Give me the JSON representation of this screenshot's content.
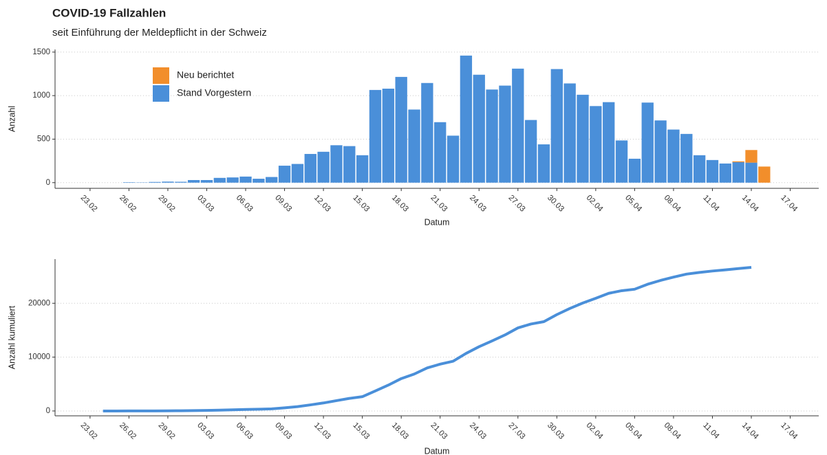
{
  "chart_data": [
    {
      "type": "bar",
      "title": "COVID-19 Fallzahlen",
      "subtitle": "seit Einführung der Meldepflicht in der Schweiz",
      "x_label": "Datum",
      "y_label": "Anzahl",
      "x": [
        "26.02",
        "27.02",
        "28.02",
        "29.02",
        "01.03",
        "02.03",
        "03.03",
        "04.03",
        "05.03",
        "06.03",
        "07.03",
        "08.03",
        "09.03",
        "10.03",
        "11.03",
        "12.03",
        "13.03",
        "14.03",
        "15.03",
        "16.03",
        "17.03",
        "18.03",
        "19.03",
        "20.03",
        "21.03",
        "22.03",
        "23.03",
        "24.03",
        "25.03",
        "26.03",
        "27.03",
        "28.03",
        "29.03",
        "30.03",
        "31.03",
        "01.04",
        "02.04",
        "03.04",
        "04.04",
        "05.04",
        "06.04",
        "07.04",
        "08.04",
        "09.04",
        "10.04",
        "11.04",
        "12.04",
        "13.04",
        "14.04",
        "15.04"
      ],
      "series": [
        {
          "name": "Neu berichtet",
          "color": "#f28e2b",
          "values": [
            0,
            0,
            0,
            0,
            0,
            0,
            0,
            0,
            0,
            0,
            0,
            0,
            0,
            0,
            0,
            0,
            0,
            0,
            0,
            0,
            0,
            0,
            0,
            0,
            0,
            0,
            0,
            0,
            0,
            0,
            0,
            0,
            0,
            0,
            0,
            0,
            0,
            0,
            0,
            0,
            0,
            0,
            0,
            0,
            0,
            0,
            0,
            10,
            145,
            185
          ]
        },
        {
          "name": "Stand Vorgestern",
          "color": "#4a8fd9",
          "values": [
            5,
            3,
            8,
            12,
            10,
            30,
            30,
            55,
            60,
            70,
            45,
            65,
            195,
            215,
            330,
            355,
            430,
            420,
            315,
            1065,
            1080,
            1215,
            840,
            1145,
            695,
            540,
            1460,
            1240,
            1070,
            1115,
            1310,
            720,
            440,
            1305,
            1140,
            1010,
            880,
            925,
            485,
            275,
            920,
            715,
            610,
            560,
            315,
            260,
            220,
            235,
            230,
            0
          ]
        }
      ],
      "xticks": [
        "23.02",
        "26.02",
        "29.02",
        "03.03",
        "06.03",
        "09.03",
        "12.03",
        "15.03",
        "18.03",
        "21.03",
        "24.03",
        "27.03",
        "30.03",
        "02.04",
        "05.04",
        "08.04",
        "11.04",
        "14.04",
        "17.04"
      ],
      "ylim": [
        -65,
        1530
      ],
      "yticks": [
        0,
        500,
        1000,
        1500
      ],
      "grid": true,
      "legend": "top-left"
    },
    {
      "type": "line",
      "x_label": "Datum",
      "y_label": "Anzahl kumuliert",
      "x": [
        "24.02",
        "25.02",
        "26.02",
        "27.02",
        "28.02",
        "29.02",
        "01.03",
        "02.03",
        "03.03",
        "04.03",
        "05.03",
        "06.03",
        "07.03",
        "08.03",
        "09.03",
        "10.03",
        "11.03",
        "12.03",
        "13.03",
        "14.03",
        "15.03",
        "16.03",
        "17.03",
        "18.03",
        "19.03",
        "20.03",
        "21.03",
        "22.03",
        "23.03",
        "24.03",
        "25.03",
        "26.03",
        "27.03",
        "28.03",
        "29.03",
        "30.03",
        "31.03",
        "01.04",
        "02.04",
        "03.04",
        "04.04",
        "05.04",
        "06.04",
        "07.04",
        "08.04",
        "09.04",
        "10.04",
        "11.04",
        "12.04",
        "13.04",
        "14.04"
      ],
      "values": [
        1,
        1,
        6,
        9,
        17,
        29,
        39,
        69,
        99,
        154,
        214,
        284,
        329,
        394,
        589,
        804,
        1134,
        1489,
        1919,
        2339,
        2654,
        3719,
        4799,
        6014,
        6854,
        7999,
        8694,
        9234,
        10694,
        11934,
        13004,
        14119,
        15429,
        16149,
        16589,
        17894,
        19034,
        20044,
        20924,
        21849,
        22334,
        22609,
        23529,
        24244,
        24854,
        25414,
        25729,
        25989,
        26209,
        26444,
        26674
      ],
      "color": "#4a8fd9",
      "xticks": [
        "23.02",
        "26.02",
        "29.02",
        "03.03",
        "06.03",
        "09.03",
        "12.03",
        "15.03",
        "18.03",
        "21.03",
        "24.03",
        "27.03",
        "30.03",
        "02.04",
        "05.04",
        "08.04",
        "11.04",
        "14.04",
        "17.04"
      ],
      "ylim": [
        -900,
        28200
      ],
      "yticks": [
        0,
        10000,
        20000
      ],
      "grid": true
    }
  ]
}
